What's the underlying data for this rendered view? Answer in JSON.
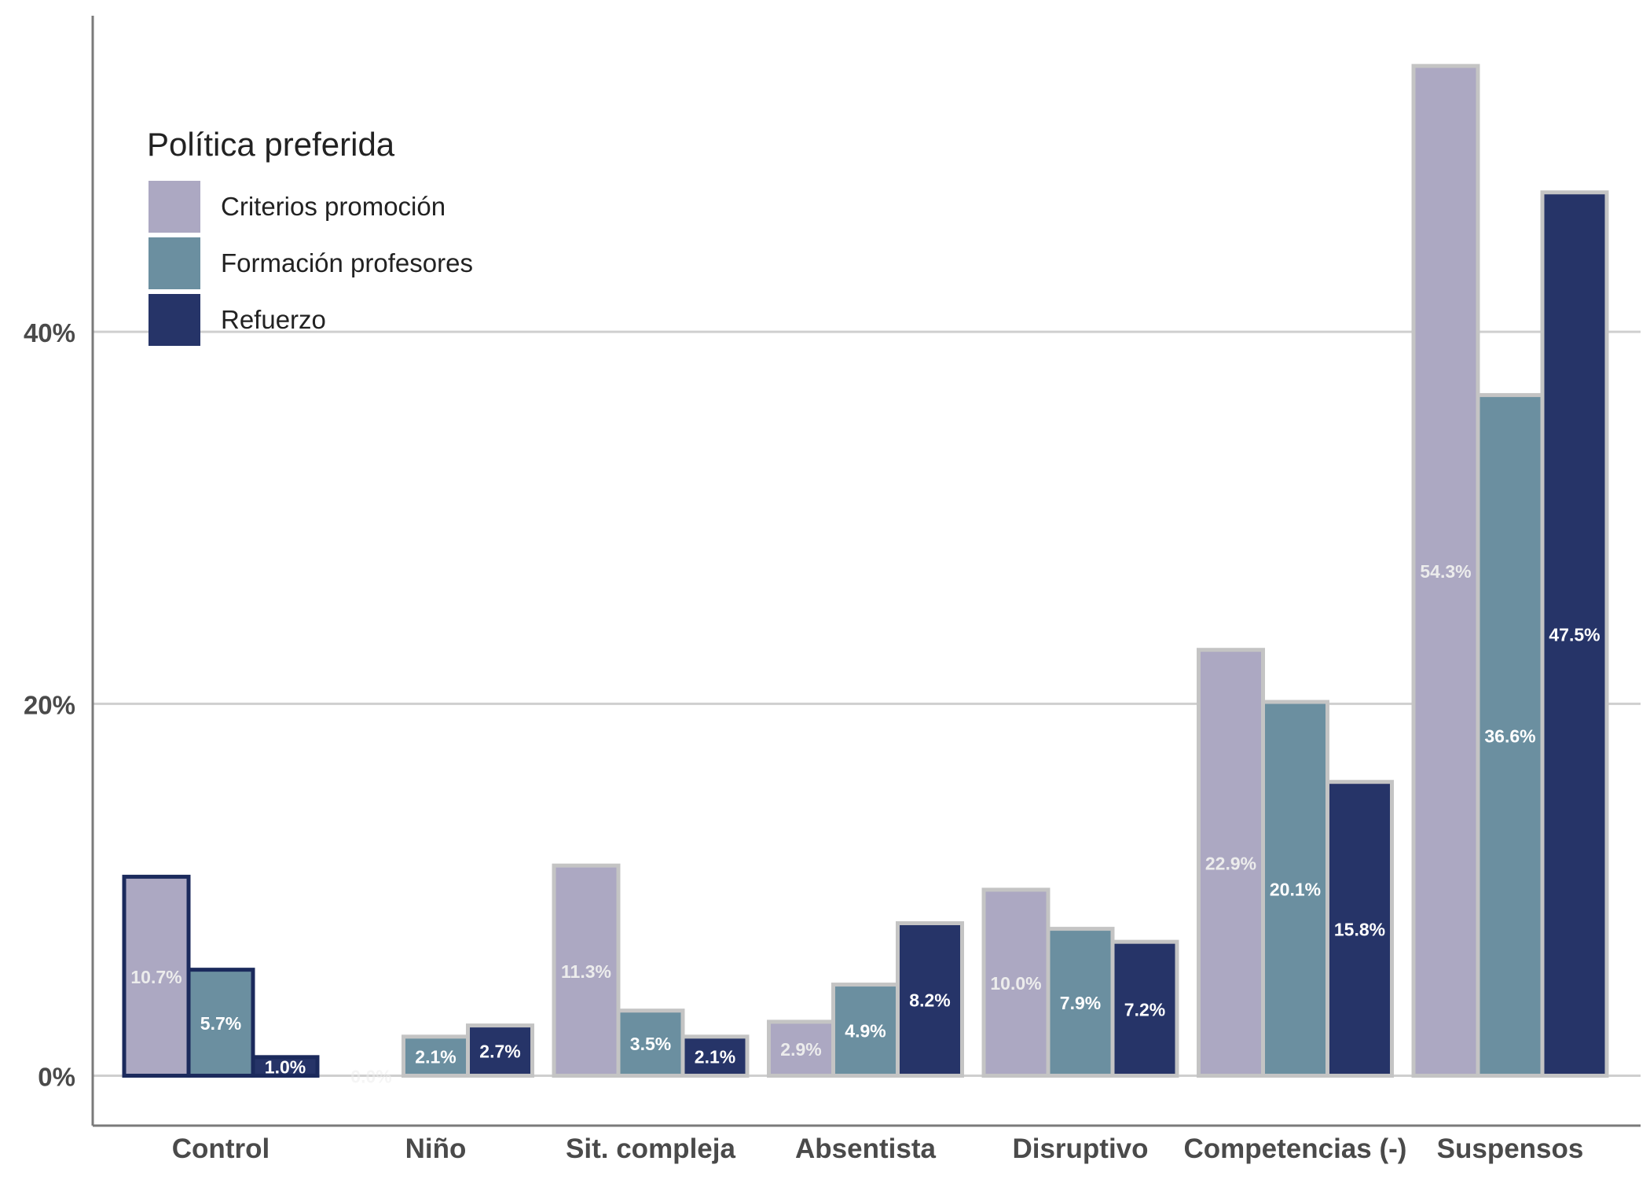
{
  "chart_data": {
    "type": "bar",
    "categories": [
      "Control",
      "Niño",
      "Sit. compleja",
      "Absentista",
      "Disruptivo",
      "Competencias (-)",
      "Suspensos"
    ],
    "series": [
      {
        "name": "Criterios promoción",
        "color": "#aca8c2",
        "values": [
          10.7,
          0.0,
          11.3,
          2.9,
          10.0,
          22.9,
          54.3
        ],
        "labels": [
          "10.7%",
          "0.0%",
          "11.3%",
          "2.9%",
          "10.0%",
          "22.9%",
          "54.3%"
        ]
      },
      {
        "name": "Formación profesores",
        "color": "#6b8fa0",
        "values": [
          5.7,
          2.1,
          3.5,
          4.9,
          7.9,
          20.1,
          36.6
        ],
        "labels": [
          "5.7%",
          "2.1%",
          "3.5%",
          "4.9%",
          "7.9%",
          "20.1%",
          "36.6%"
        ]
      },
      {
        "name": "Refuerzo",
        "color": "#263468",
        "values": [
          1.0,
          2.7,
          2.1,
          8.2,
          7.2,
          15.8,
          47.5
        ],
        "labels": [
          "1.0%",
          "2.7%",
          "2.1%",
          "8.2%",
          "7.2%",
          "15.8%",
          "47.5%"
        ]
      }
    ],
    "legend_title": "Política preferida",
    "legend_position": "top-left",
    "yticks": [
      0,
      20,
      40
    ],
    "ytick_labels": [
      "0%",
      "20%",
      "40%"
    ],
    "ylim": [
      -2.6,
      57
    ],
    "grid": "horizontal major",
    "highlighted_category": "Control",
    "highlight_color": "#1b2a5c",
    "title": "",
    "xlabel": "",
    "ylabel": ""
  }
}
